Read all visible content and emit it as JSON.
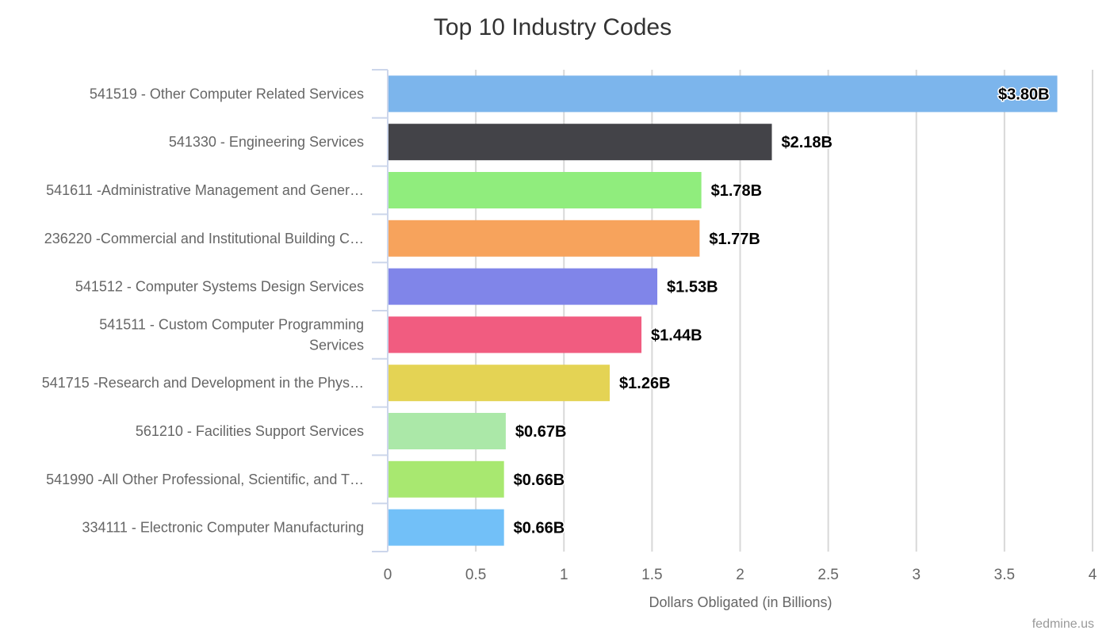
{
  "chart_data": {
    "type": "bar",
    "orientation": "horizontal",
    "title": "Top 10 Industry Codes",
    "xlabel": "Dollars Obligated (in Billions)",
    "ylabel": "",
    "xlim": [
      0,
      4
    ],
    "xticks": [
      "0",
      "0.5",
      "1",
      "1.5",
      "2",
      "2.5",
      "3",
      "3.5",
      "4"
    ],
    "grid": true,
    "categories": [
      [
        "541519 - Other Computer Related Services"
      ],
      [
        "541330 - Engineering Services"
      ],
      [
        "541611 -Administrative Management and Gener…"
      ],
      [
        "236220 -Commercial and Institutional Building C…"
      ],
      [
        "541512 - Computer Systems Design Services"
      ],
      [
        "541511 - Custom Computer Programming",
        "Services"
      ],
      [
        "541715 -Research and Development in the Phys…"
      ],
      [
        "561210 - Facilities Support Services"
      ],
      [
        "541990 -All Other Professional, Scientific, and T…"
      ],
      [
        "334111 - Electronic Computer Manufacturing"
      ]
    ],
    "values": [
      3.8,
      2.18,
      1.78,
      1.77,
      1.53,
      1.44,
      1.26,
      0.67,
      0.66,
      0.66
    ],
    "data_labels": [
      "$3.80B",
      "$2.18B",
      "$1.78B",
      "$1.77B",
      "$1.53B",
      "$1.44B",
      "$1.26B",
      "$0.67B",
      "$0.66B",
      "$0.66B"
    ],
    "colors": [
      "#7cb5ec",
      "#434348",
      "#90ed7d",
      "#f7a35c",
      "#8085e9",
      "#f15c80",
      "#e4d354",
      "#abe8a8",
      "#a8e870",
      "#72c0f8"
    ],
    "credit": "fedmine.us"
  }
}
